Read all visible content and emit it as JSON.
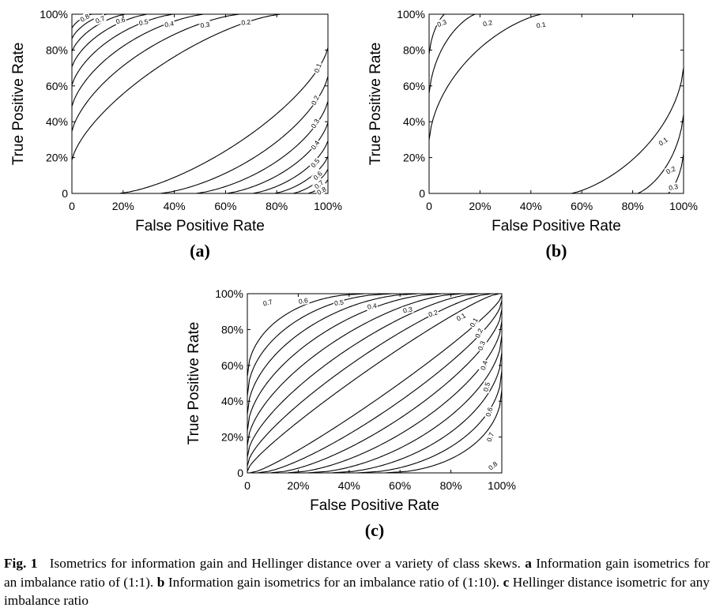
{
  "chart_data": [
    {
      "type": "contour",
      "panel_label": "(a)",
      "xlabel": "False Positive Rate",
      "ylabel": "True Positive Rate",
      "xlim": [
        0,
        1
      ],
      "ylim": [
        0,
        1
      ],
      "xticks": [
        "0",
        "20%",
        "40%",
        "60%",
        "80%",
        "100%"
      ],
      "yticks": [
        "0",
        "20%",
        "40%",
        "60%",
        "80%",
        "100%"
      ],
      "grid": false,
      "metric": "information gain",
      "imbalance_ratio": "1:1",
      "levels": [
        "0.1",
        "0.2",
        "0.3",
        "0.4",
        "0.5",
        "0.6",
        "0.7",
        "0.8"
      ]
    },
    {
      "type": "contour",
      "panel_label": "(b)",
      "xlabel": "False Positive Rate",
      "ylabel": "True Positive Rate",
      "xlim": [
        0,
        1
      ],
      "ylim": [
        0,
        1
      ],
      "xticks": [
        "0",
        "20%",
        "40%",
        "60%",
        "80%",
        "100%"
      ],
      "yticks": [
        "0",
        "20%",
        "40%",
        "60%",
        "80%",
        "100%"
      ],
      "grid": false,
      "metric": "information gain",
      "imbalance_ratio": "1:10",
      "levels": [
        "0.1",
        "0.2",
        "0.3"
      ]
    },
    {
      "type": "contour",
      "panel_label": "(c)",
      "xlabel": "False Positive Rate",
      "ylabel": "True Positive Rate",
      "xlim": [
        0,
        1
      ],
      "ylim": [
        0,
        1
      ],
      "xticks": [
        "0",
        "20%",
        "40%",
        "60%",
        "80%",
        "100%"
      ],
      "yticks": [
        "0",
        "20%",
        "40%",
        "60%",
        "80%",
        "100%"
      ],
      "grid": false,
      "metric": "Hellinger distance",
      "imbalance_ratio": "any",
      "levels": [
        "0.1",
        "0.2",
        "0.3",
        "0.4",
        "0.5",
        "0.6",
        "0.7",
        "0.8"
      ]
    }
  ],
  "caption": {
    "fig_number": "Fig. 1",
    "intro": "Isometrics for information gain and Hellinger distance over a variety of class skews.",
    "a_letter": "a",
    "a_text": "Information gain isometrics for an imbalance ratio of (1:1).",
    "b_letter": "b",
    "b_text": "Information gain isometrics for an imbalance ratio of (1:10).",
    "c_letter": "c",
    "c_text": "Hellinger distance isometric for any imbalance ratio"
  }
}
